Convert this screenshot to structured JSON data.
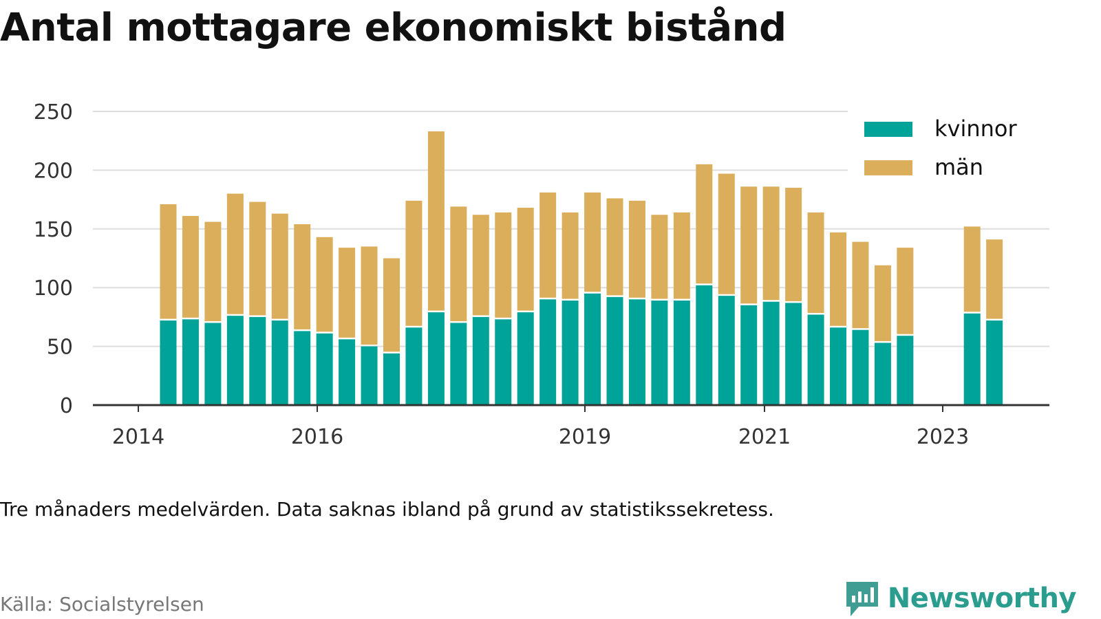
{
  "title": "Antal mottagare ekonomiskt bistånd",
  "note": "Tre månaders medelvärden. Data saknas ibland på grund av statistikssekretess.",
  "source": "Källa: Socialstyrelsen",
  "brand": {
    "name": "Newsworthy",
    "icon": "bar-chart-speech-bubble-icon"
  },
  "colors": {
    "kvinnor": "#00a398",
    "man": "#dbae5b",
    "grid": "#dddddd",
    "axis": "#333333"
  },
  "chart_data": {
    "type": "bar",
    "stacked": true,
    "x_tick_labels": [
      "2014",
      "2016",
      "2019",
      "2021",
      "2023"
    ],
    "y_tick_labels": [
      "0",
      "50",
      "100",
      "150",
      "200",
      "250"
    ],
    "ylim": [
      0,
      250
    ],
    "grid": true,
    "legend_position": "top-right",
    "series": [
      {
        "name": "kvinnor",
        "color": "#00a398",
        "values": [
          72,
          73,
          70,
          76,
          75,
          72,
          63,
          61,
          56,
          50,
          44,
          66,
          79,
          70,
          75,
          73,
          79,
          90,
          89,
          95,
          92,
          90,
          89,
          89,
          102,
          93,
          85,
          88,
          87,
          77,
          66,
          64,
          53,
          59,
          null,
          null,
          78,
          72
        ]
      },
      {
        "name": "män",
        "color": "#dbae5b",
        "values": [
          99,
          88,
          86,
          104,
          98,
          91,
          91,
          82,
          78,
          85,
          81,
          108,
          154,
          99,
          87,
          91,
          89,
          91,
          75,
          86,
          84,
          84,
          73,
          75,
          103,
          104,
          101,
          98,
          98,
          87,
          81,
          75,
          66,
          75,
          null,
          null,
          74,
          69
        ]
      }
    ]
  }
}
